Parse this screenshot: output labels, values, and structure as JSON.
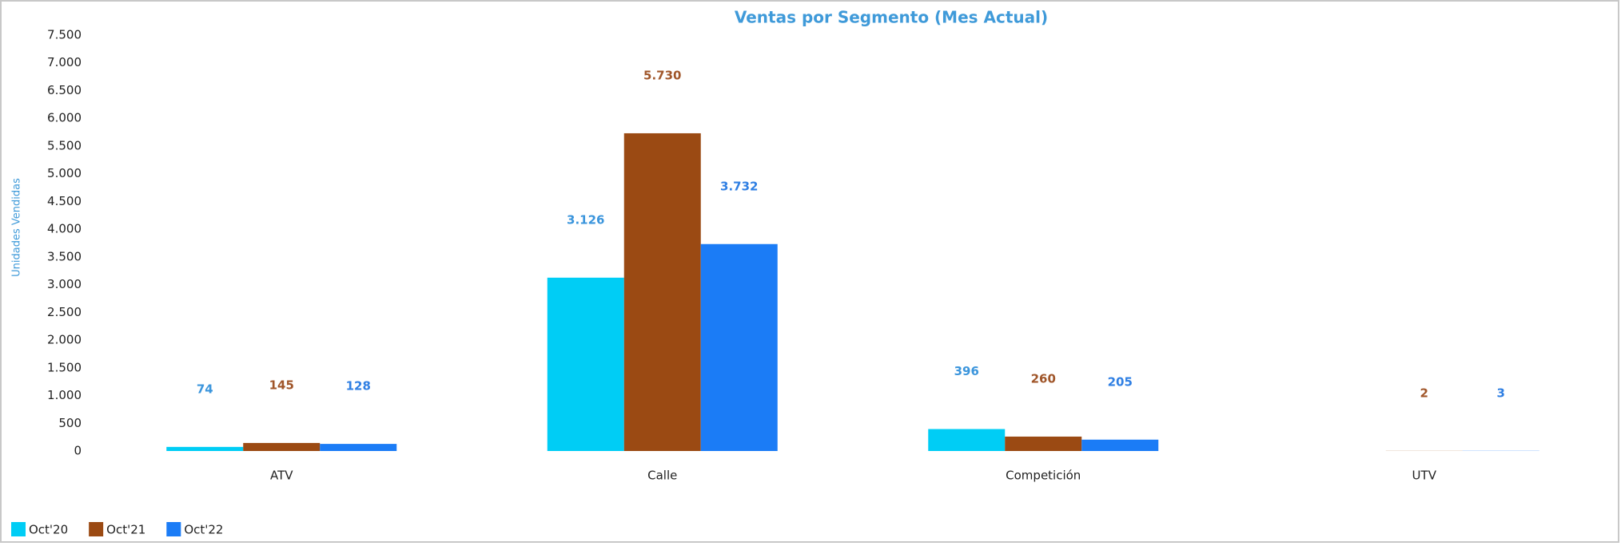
{
  "chart_data": {
    "type": "bar",
    "title": "Ventas por Segmento (Mes Actual)",
    "y_label": "Unidades Vendidas",
    "categories": [
      "ATV",
      "Calle",
      "Competición",
      "UTV"
    ],
    "series": [
      {
        "name": "Oct'20",
        "color": "#00cdf5",
        "label_color": "#3b95dc",
        "values": [
          74,
          3126,
          396,
          null
        ],
        "value_labels": [
          "74",
          "3.126",
          "396",
          null
        ]
      },
      {
        "name": "Oct'21",
        "color": "#9b4a13",
        "label_color": "#a0562a",
        "values": [
          145,
          5730,
          260,
          2
        ],
        "value_labels": [
          "145",
          "5.730",
          "260",
          "2"
        ]
      },
      {
        "name": "Oct'22",
        "color": "#1b7cf6",
        "label_color": "#2f7fe3",
        "values": [
          128,
          3732,
          205,
          3
        ],
        "value_labels": [
          "128",
          "3.732",
          "205",
          "3"
        ]
      }
    ],
    "ylim": [
      0,
      7500
    ],
    "yticks": [
      0,
      500,
      {
        "value": 1000,
        "label": "1.000"
      },
      {
        "value": 1500,
        "label": "1.500"
      },
      {
        "value": 2000,
        "label": "2.000"
      },
      {
        "value": 2500,
        "label": "2.500"
      },
      {
        "value": 3000,
        "label": "3.000"
      },
      {
        "value": 3500,
        "label": "3.500"
      },
      {
        "value": 4000,
        "label": "4.000"
      },
      {
        "value": 4500,
        "label": "4.500"
      },
      {
        "value": 5000,
        "label": "5.000"
      },
      {
        "value": 5500,
        "label": "5.500"
      },
      {
        "value": 6000,
        "label": "6.000"
      },
      {
        "value": 6500,
        "label": "6.500"
      },
      {
        "value": 7000,
        "label": "7.000"
      },
      {
        "value": 7500,
        "label": "7.500"
      }
    ],
    "grid": false,
    "legend": "bottom-left"
  }
}
